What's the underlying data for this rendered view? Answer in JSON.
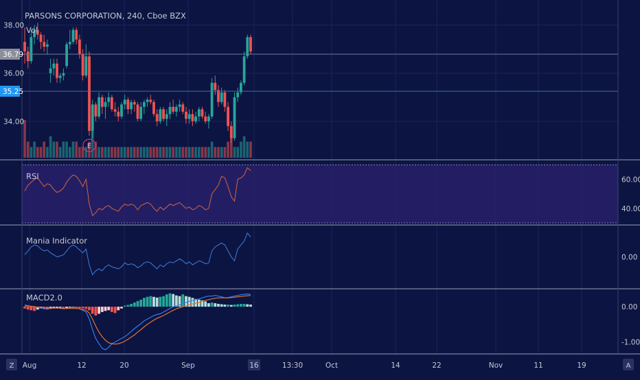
{
  "symbol_title": "PARSONS CORPORATION, 240, Cboe BZX",
  "colors": {
    "background": "#0c1442",
    "grid": "#1b2458",
    "separator": "#9aa0b8",
    "up": "#26a69a",
    "down": "#ef5350",
    "rsi_band": "#2b2270",
    "rsi_line": "#d0653f",
    "mania_line": "#3f7fd8",
    "macd_line": "#2f80ed",
    "signal_line": "#e8742e",
    "price_badge_gray": "#8a8f99",
    "price_badge_blue": "#2196f3",
    "axis_text": "#c6cad6"
  },
  "time_axis": {
    "labels": [
      "Aug",
      "12",
      "20",
      "Sep",
      "16",
      "13:30",
      "Oct",
      "14",
      "22",
      "Nov",
      "11",
      "19"
    ],
    "highlighted": "16"
  },
  "badges": {
    "left": "Z",
    "right": "A"
  },
  "chart_data": [
    {
      "name": "price",
      "type": "candlestick",
      "legend": [
        "Vol"
      ],
      "y_ticks": [
        "38.00",
        "36.00",
        "34.00"
      ],
      "price_markers": [
        {
          "label": "36.79",
          "value": 36.79,
          "color": "gray"
        },
        {
          "label": "35.25",
          "value": 35.25,
          "color": "blue"
        }
      ],
      "earnings_marker": "E",
      "ohlc": [
        [
          37.3,
          37.9,
          36.4,
          36.9
        ],
        [
          36.9,
          37.1,
          36.2,
          36.5
        ],
        [
          36.5,
          37.8,
          36.4,
          37.5
        ],
        [
          37.5,
          38.0,
          37.2,
          37.8
        ],
        [
          37.8,
          38.1,
          37.4,
          37.6
        ],
        [
          37.6,
          37.7,
          37.0,
          37.3
        ],
        [
          37.3,
          37.6,
          36.9,
          37.1
        ],
        [
          37.1,
          37.4,
          36.8,
          37.2
        ],
        [
          36.0,
          36.6,
          35.6,
          36.2
        ],
        [
          36.2,
          36.6,
          35.9,
          36.4
        ],
        [
          36.4,
          36.6,
          35.6,
          35.8
        ],
        [
          35.8,
          36.0,
          35.6,
          35.9
        ],
        [
          35.9,
          36.2,
          35.7,
          36.0
        ],
        [
          36.3,
          37.3,
          36.2,
          37.2
        ],
        [
          37.2,
          37.8,
          37.0,
          37.3
        ],
        [
          37.3,
          37.9,
          37.2,
          37.8
        ],
        [
          37.8,
          37.9,
          37.2,
          37.4
        ],
        [
          37.4,
          37.6,
          36.6,
          36.8
        ],
        [
          36.8,
          37.0,
          35.7,
          35.9
        ],
        [
          35.9,
          37.2,
          35.8,
          36.7
        ],
        [
          36.7,
          36.9,
          33.4,
          33.6
        ],
        [
          33.6,
          34.9,
          33.3,
          34.7
        ],
        [
          34.7,
          34.8,
          34.0,
          34.2
        ],
        [
          34.2,
          35.2,
          34.1,
          35.0
        ],
        [
          35.0,
          35.1,
          34.3,
          34.6
        ],
        [
          34.6,
          35.0,
          34.1,
          34.8
        ],
        [
          34.8,
          35.2,
          34.6,
          35.0
        ],
        [
          35.0,
          35.1,
          34.4,
          34.5
        ],
        [
          34.5,
          34.8,
          34.2,
          34.4
        ],
        [
          34.4,
          34.6,
          34.0,
          34.2
        ],
        [
          34.2,
          34.8,
          34.1,
          34.7
        ],
        [
          34.7,
          35.1,
          34.5,
          34.9
        ],
        [
          34.9,
          35.0,
          34.3,
          34.5
        ],
        [
          34.5,
          34.9,
          34.3,
          34.8
        ],
        [
          34.8,
          34.9,
          34.4,
          34.7
        ],
        [
          34.7,
          34.8,
          34.0,
          34.1
        ],
        [
          34.1,
          34.8,
          34.0,
          34.6
        ],
        [
          34.6,
          34.9,
          34.3,
          34.8
        ],
        [
          34.8,
          35.0,
          34.6,
          34.9
        ],
        [
          34.9,
          35.1,
          34.7,
          34.8
        ],
        [
          34.8,
          34.9,
          34.2,
          34.3
        ],
        [
          34.3,
          34.5,
          33.8,
          34.0
        ],
        [
          34.0,
          34.6,
          33.9,
          34.5
        ],
        [
          34.5,
          34.6,
          34.0,
          34.1
        ],
        [
          34.1,
          34.5,
          33.8,
          34.3
        ],
        [
          34.3,
          34.8,
          34.1,
          34.6
        ],
        [
          34.6,
          34.9,
          34.3,
          34.4
        ],
        [
          34.4,
          34.7,
          34.2,
          34.6
        ],
        [
          34.6,
          34.9,
          34.4,
          34.7
        ],
        [
          34.7,
          34.8,
          34.3,
          34.4
        ],
        [
          34.4,
          34.6,
          33.9,
          34.1
        ],
        [
          34.1,
          34.5,
          33.9,
          34.3
        ],
        [
          34.3,
          34.5,
          33.8,
          34.0
        ],
        [
          34.0,
          34.4,
          33.9,
          34.2
        ],
        [
          34.2,
          34.6,
          34.0,
          34.5
        ],
        [
          34.5,
          34.6,
          34.1,
          34.2
        ],
        [
          34.2,
          34.4,
          33.9,
          34.0
        ],
        [
          34.0,
          34.3,
          33.7,
          34.2
        ],
        [
          34.2,
          35.8,
          34.1,
          35.6
        ],
        [
          35.6,
          35.9,
          35.1,
          35.3
        ],
        [
          35.3,
          35.5,
          34.6,
          34.8
        ],
        [
          34.8,
          35.4,
          34.7,
          35.2
        ],
        [
          35.2,
          35.3,
          34.4,
          34.6
        ],
        [
          34.6,
          34.8,
          33.6,
          33.8
        ],
        [
          33.8,
          34.0,
          33.1,
          33.3
        ],
        [
          33.3,
          35.2,
          33.2,
          35.0
        ],
        [
          35.0,
          35.4,
          34.8,
          35.2
        ],
        [
          35.2,
          35.7,
          35.1,
          35.6
        ],
        [
          35.6,
          36.9,
          35.5,
          36.7
        ],
        [
          36.7,
          37.6,
          36.6,
          37.5
        ],
        [
          37.5,
          37.6,
          36.8,
          36.9
        ]
      ],
      "volume": [
        7,
        3,
        2,
        3,
        2,
        2,
        3,
        2,
        4,
        3,
        3,
        2,
        3,
        3,
        2,
        3,
        3,
        2,
        2,
        2,
        3,
        5,
        3,
        2,
        2,
        2,
        2,
        2,
        2,
        2,
        2,
        2,
        2,
        2,
        2,
        2,
        2,
        2,
        2,
        2,
        2,
        2,
        2,
        2,
        2,
        2,
        2,
        2,
        2,
        2,
        2,
        2,
        2,
        2,
        2,
        2,
        2,
        2,
        3,
        2,
        2,
        2,
        2,
        3,
        4,
        2,
        2,
        3,
        4,
        3,
        3
      ]
    },
    {
      "name": "rsi",
      "type": "line",
      "legend": [
        "RSI"
      ],
      "y_ticks": [
        "60.00",
        "40.00"
      ],
      "ylim": [
        30,
        72
      ],
      "band": [
        30,
        70
      ],
      "values": [
        52,
        56,
        58,
        60,
        61,
        58,
        55,
        57,
        56,
        53,
        51,
        52,
        54,
        58,
        61,
        63,
        62,
        59,
        55,
        60,
        43,
        35,
        37,
        40,
        39,
        41,
        42,
        40,
        39,
        38,
        41,
        43,
        42,
        43,
        42,
        39,
        42,
        43,
        44,
        43,
        40,
        38,
        41,
        39,
        41,
        43,
        42,
        43,
        44,
        42,
        40,
        41,
        39,
        40,
        42,
        41,
        39,
        40,
        50,
        53,
        56,
        62,
        61,
        55,
        48,
        45,
        60,
        61,
        63,
        68,
        66
      ]
    },
    {
      "name": "mania",
      "type": "line",
      "legend": [
        "Mania Indicator"
      ],
      "y_ticks": [
        "0.00"
      ],
      "ylim": [
        -1.5,
        1.5
      ],
      "values": [
        0.1,
        0.3,
        0.5,
        0.6,
        0.55,
        0.4,
        0.3,
        0.35,
        0.2,
        0.1,
        0.0,
        0.05,
        0.1,
        0.3,
        0.5,
        0.6,
        0.5,
        0.35,
        0.2,
        0.4,
        -0.4,
        -0.9,
        -0.7,
        -0.6,
        -0.7,
        -0.5,
        -0.4,
        -0.5,
        -0.55,
        -0.6,
        -0.5,
        -0.3,
        -0.4,
        -0.35,
        -0.4,
        -0.55,
        -0.45,
        -0.3,
        -0.25,
        -0.3,
        -0.45,
        -0.6,
        -0.4,
        -0.5,
        -0.35,
        -0.25,
        -0.3,
        -0.2,
        -0.1,
        -0.2,
        -0.35,
        -0.25,
        -0.4,
        -0.3,
        -0.2,
        -0.25,
        -0.35,
        -0.3,
        0.3,
        0.5,
        0.6,
        0.7,
        0.6,
        0.3,
        0.0,
        -0.2,
        0.4,
        0.6,
        0.8,
        1.2,
        1.0
      ]
    },
    {
      "name": "macd",
      "type": "histogram_line",
      "legend": [
        "MACD2.0"
      ],
      "y_ticks": [
        "0.00",
        "-1.00"
      ],
      "ylim": [
        -1.3,
        0.45
      ],
      "histogram": [
        -0.05,
        -0.08,
        -0.1,
        -0.12,
        -0.08,
        -0.05,
        -0.07,
        -0.08,
        -0.06,
        -0.05,
        -0.04,
        -0.03,
        -0.05,
        -0.04,
        -0.03,
        -0.02,
        -0.03,
        -0.04,
        -0.05,
        -0.06,
        -0.1,
        -0.2,
        -0.25,
        -0.2,
        -0.15,
        -0.12,
        -0.1,
        -0.15,
        -0.18,
        -0.1,
        -0.05,
        0.03,
        0.05,
        0.08,
        0.12,
        0.16,
        0.2,
        0.25,
        0.28,
        0.3,
        0.28,
        0.26,
        0.28,
        0.3,
        0.35,
        0.38,
        0.36,
        0.32,
        0.3,
        0.35,
        0.3,
        0.28,
        0.25,
        0.22,
        0.2,
        0.18,
        0.15,
        0.1,
        0.12,
        0.1,
        0.08,
        0.07,
        0.06,
        0.06,
        0.05,
        0.06,
        0.07,
        0.08,
        0.08,
        0.07,
        0.06
      ],
      "macd": [
        0.05,
        0.03,
        0.01,
        0.0,
        -0.02,
        -0.04,
        -0.05,
        -0.06,
        -0.05,
        -0.04,
        -0.04,
        -0.05,
        -0.06,
        -0.05,
        -0.03,
        -0.02,
        -0.03,
        -0.06,
        -0.1,
        -0.15,
        -0.35,
        -0.65,
        -0.9,
        -1.05,
        -1.18,
        -1.22,
        -1.15,
        -1.05,
        -1.0,
        -0.95,
        -0.9,
        -0.85,
        -0.78,
        -0.7,
        -0.62,
        -0.55,
        -0.48,
        -0.4,
        -0.35,
        -0.3,
        -0.25,
        -0.22,
        -0.2,
        -0.15,
        -0.1,
        -0.05,
        0.0,
        0.02,
        0.05,
        0.1,
        0.12,
        0.15,
        0.18,
        0.2,
        0.22,
        0.25,
        0.28,
        0.3,
        0.3,
        0.32,
        0.3,
        0.28,
        0.25,
        0.26,
        0.28,
        0.3,
        0.32,
        0.34,
        0.35,
        0.36,
        0.35
      ],
      "signal": [
        0.02,
        0.02,
        0.01,
        0.0,
        -0.01,
        -0.02,
        -0.03,
        -0.04,
        -0.04,
        -0.04,
        -0.04,
        -0.04,
        -0.05,
        -0.05,
        -0.05,
        -0.05,
        -0.05,
        -0.06,
        -0.08,
        -0.1,
        -0.18,
        -0.35,
        -0.55,
        -0.72,
        -0.85,
        -0.95,
        -1.02,
        -1.05,
        -1.06,
        -1.05,
        -1.02,
        -0.98,
        -0.92,
        -0.86,
        -0.8,
        -0.72,
        -0.65,
        -0.57,
        -0.5,
        -0.44,
        -0.38,
        -0.33,
        -0.29,
        -0.25,
        -0.2,
        -0.15,
        -0.1,
        -0.06,
        -0.03,
        0.0,
        0.03,
        0.06,
        0.08,
        0.1,
        0.12,
        0.15,
        0.18,
        0.2,
        0.22,
        0.24,
        0.25,
        0.25,
        0.25,
        0.25,
        0.26,
        0.27,
        0.28,
        0.29,
        0.3,
        0.31,
        0.32
      ]
    }
  ]
}
